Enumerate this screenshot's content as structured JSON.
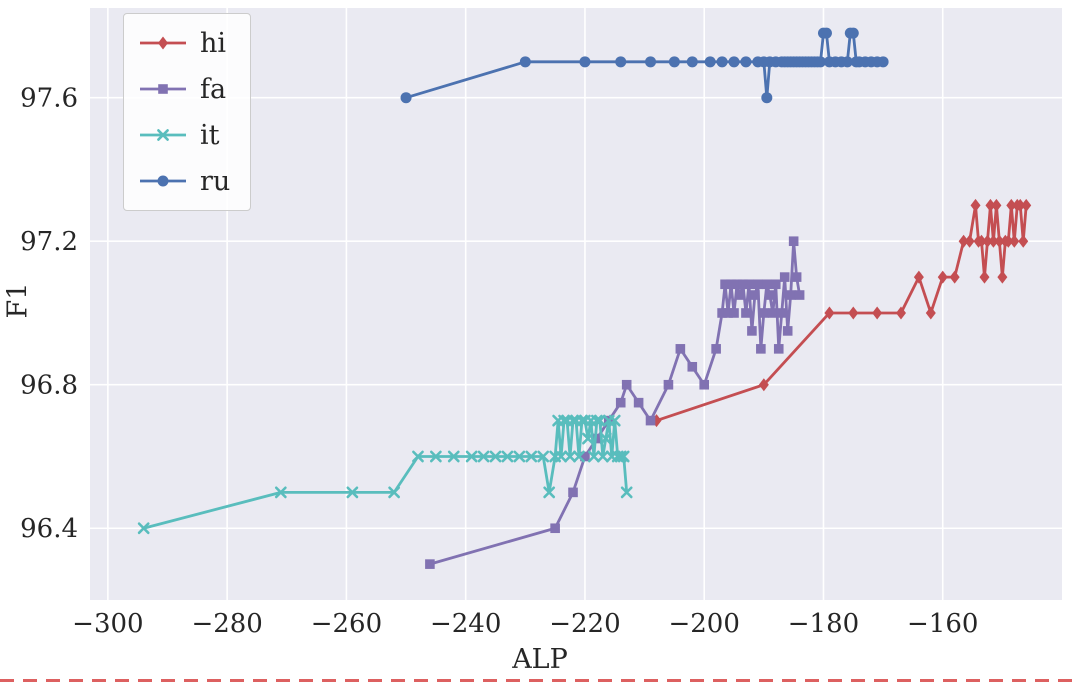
{
  "figure": {
    "background": "#ffffff",
    "plot_background": "#eaeaf2",
    "grid_color": "#ffffff"
  },
  "chart_data": {
    "type": "line",
    "title": "",
    "xlabel": "ALP",
    "ylabel": "F1",
    "xlim": [
      -303,
      -140
    ],
    "ylim": [
      96.2,
      97.85
    ],
    "grid": true,
    "legend_position": "upper left",
    "x_ticks": [
      -300,
      -280,
      -260,
      -240,
      -220,
      -200,
      -180,
      -160
    ],
    "x_tick_labels": [
      "−300",
      "−280",
      "−260",
      "−240",
      "−220",
      "−200",
      "−180",
      "−160"
    ],
    "y_ticks": [
      96.4,
      96.8,
      97.2,
      97.6
    ],
    "y_tick_labels": [
      "96.4",
      "96.8",
      "97.2",
      "97.6"
    ],
    "series": [
      {
        "name": "hi",
        "color": "#c44e52",
        "marker": "diamond",
        "points": [
          [
            -208,
            96.7
          ],
          [
            -190,
            96.8
          ],
          [
            -179,
            97.0
          ],
          [
            -175,
            97.0
          ],
          [
            -171,
            97.0
          ],
          [
            -167,
            97.0
          ],
          [
            -164,
            97.1
          ],
          [
            -162,
            97.0
          ],
          [
            -160,
            97.1
          ],
          [
            -158,
            97.1
          ],
          [
            -156.5,
            97.2
          ],
          [
            -155.5,
            97.2
          ],
          [
            -154.5,
            97.3
          ],
          [
            -154,
            97.2
          ],
          [
            -153.5,
            97.2
          ],
          [
            -153,
            97.1
          ],
          [
            -152.5,
            97.2
          ],
          [
            -152,
            97.3
          ],
          [
            -151.5,
            97.2
          ],
          [
            -151,
            97.3
          ],
          [
            -150.5,
            97.2
          ],
          [
            -150,
            97.1
          ],
          [
            -149.5,
            97.2
          ],
          [
            -149,
            97.2
          ],
          [
            -148.5,
            97.3
          ],
          [
            -148,
            97.2
          ],
          [
            -147.5,
            97.3
          ],
          [
            -147,
            97.3
          ],
          [
            -146.5,
            97.2
          ],
          [
            -146,
            97.3
          ]
        ]
      },
      {
        "name": "fa",
        "color": "#8172b2",
        "marker": "square",
        "points": [
          [
            -246,
            96.3
          ],
          [
            -225,
            96.4
          ],
          [
            -222,
            96.5
          ],
          [
            -220,
            96.6
          ],
          [
            -218,
            96.65
          ],
          [
            -216,
            96.7
          ],
          [
            -214,
            96.75
          ],
          [
            -213,
            96.8
          ],
          [
            -211,
            96.75
          ],
          [
            -209,
            96.7
          ],
          [
            -206,
            96.8
          ],
          [
            -204,
            96.9
          ],
          [
            -202,
            96.85
          ],
          [
            -200,
            96.8
          ],
          [
            -198,
            96.9
          ],
          [
            -197,
            97.0
          ],
          [
            -196.5,
            97.08
          ],
          [
            -196,
            97.0
          ],
          [
            -195.5,
            97.08
          ],
          [
            -195,
            97.0
          ],
          [
            -194.5,
            97.08
          ],
          [
            -194,
            97.05
          ],
          [
            -193.5,
            97.08
          ],
          [
            -193,
            97.0
          ],
          [
            -192.5,
            97.08
          ],
          [
            -192,
            96.95
          ],
          [
            -191.5,
            97.05
          ],
          [
            -191,
            97.08
          ],
          [
            -190.5,
            96.9
          ],
          [
            -190,
            97.0
          ],
          [
            -189.5,
            97.08
          ],
          [
            -189,
            97.05
          ],
          [
            -188.5,
            97.0
          ],
          [
            -188,
            97.08
          ],
          [
            -187.5,
            96.9
          ],
          [
            -187,
            97.0
          ],
          [
            -186.5,
            97.1
          ],
          [
            -186,
            96.95
          ],
          [
            -185.5,
            97.05
          ],
          [
            -185,
            97.2
          ],
          [
            -184.5,
            97.1
          ],
          [
            -184,
            97.05
          ]
        ]
      },
      {
        "name": "it",
        "color": "#59bdbd",
        "marker": "x",
        "points": [
          [
            -294,
            96.4
          ],
          [
            -271,
            96.5
          ],
          [
            -259,
            96.5
          ],
          [
            -252,
            96.5
          ],
          [
            -248,
            96.6
          ],
          [
            -245,
            96.6
          ],
          [
            -242,
            96.6
          ],
          [
            -239,
            96.6
          ],
          [
            -237,
            96.6
          ],
          [
            -235,
            96.6
          ],
          [
            -233,
            96.6
          ],
          [
            -231,
            96.6
          ],
          [
            -229,
            96.6
          ],
          [
            -227,
            96.6
          ],
          [
            -226,
            96.5
          ],
          [
            -225,
            96.6
          ],
          [
            -224.5,
            96.7
          ],
          [
            -224,
            96.6
          ],
          [
            -223.5,
            96.7
          ],
          [
            -223,
            96.7
          ],
          [
            -222.5,
            96.6
          ],
          [
            -222,
            96.7
          ],
          [
            -221.5,
            96.7
          ],
          [
            -221,
            96.6
          ],
          [
            -220.5,
            96.7
          ],
          [
            -220,
            96.7
          ],
          [
            -219.5,
            96.65
          ],
          [
            -219,
            96.7
          ],
          [
            -218.5,
            96.6
          ],
          [
            -218,
            96.7
          ],
          [
            -217.5,
            96.7
          ],
          [
            -217,
            96.6
          ],
          [
            -216.5,
            96.65
          ],
          [
            -216,
            96.7
          ],
          [
            -215.5,
            96.6
          ],
          [
            -215,
            96.7
          ],
          [
            -214.5,
            96.6
          ],
          [
            -214,
            96.6
          ],
          [
            -213.5,
            96.6
          ],
          [
            -213,
            96.5
          ]
        ]
      },
      {
        "name": "ru",
        "color": "#4c72b0",
        "marker": "circle",
        "points": [
          [
            -250,
            97.6
          ],
          [
            -230,
            97.7
          ],
          [
            -220,
            97.7
          ],
          [
            -214,
            97.7
          ],
          [
            -209,
            97.7
          ],
          [
            -205,
            97.7
          ],
          [
            -202,
            97.7
          ],
          [
            -199,
            97.7
          ],
          [
            -197,
            97.7
          ],
          [
            -195,
            97.7
          ],
          [
            -193,
            97.7
          ],
          [
            -191,
            97.7
          ],
          [
            -190,
            97.7
          ],
          [
            -189.5,
            97.6
          ],
          [
            -189,
            97.7
          ],
          [
            -188,
            97.7
          ],
          [
            -187,
            97.7
          ],
          [
            -186.5,
            97.7
          ],
          [
            -186,
            97.7
          ],
          [
            -185.5,
            97.7
          ],
          [
            -185,
            97.7
          ],
          [
            -184.5,
            97.7
          ],
          [
            -184,
            97.7
          ],
          [
            -183.5,
            97.7
          ],
          [
            -183,
            97.7
          ],
          [
            -182.5,
            97.7
          ],
          [
            -182,
            97.7
          ],
          [
            -181.5,
            97.7
          ],
          [
            -181,
            97.7
          ],
          [
            -180.5,
            97.7
          ],
          [
            -180,
            97.78
          ],
          [
            -179.5,
            97.78
          ],
          [
            -179,
            97.7
          ],
          [
            -178,
            97.7
          ],
          [
            -177,
            97.7
          ],
          [
            -176,
            97.7
          ],
          [
            -175.5,
            97.78
          ],
          [
            -175,
            97.78
          ],
          [
            -174.5,
            97.7
          ],
          [
            -174,
            97.7
          ],
          [
            -173,
            97.7
          ],
          [
            -172,
            97.7
          ],
          [
            -171,
            97.7
          ],
          [
            -170,
            97.7
          ]
        ]
      }
    ]
  }
}
